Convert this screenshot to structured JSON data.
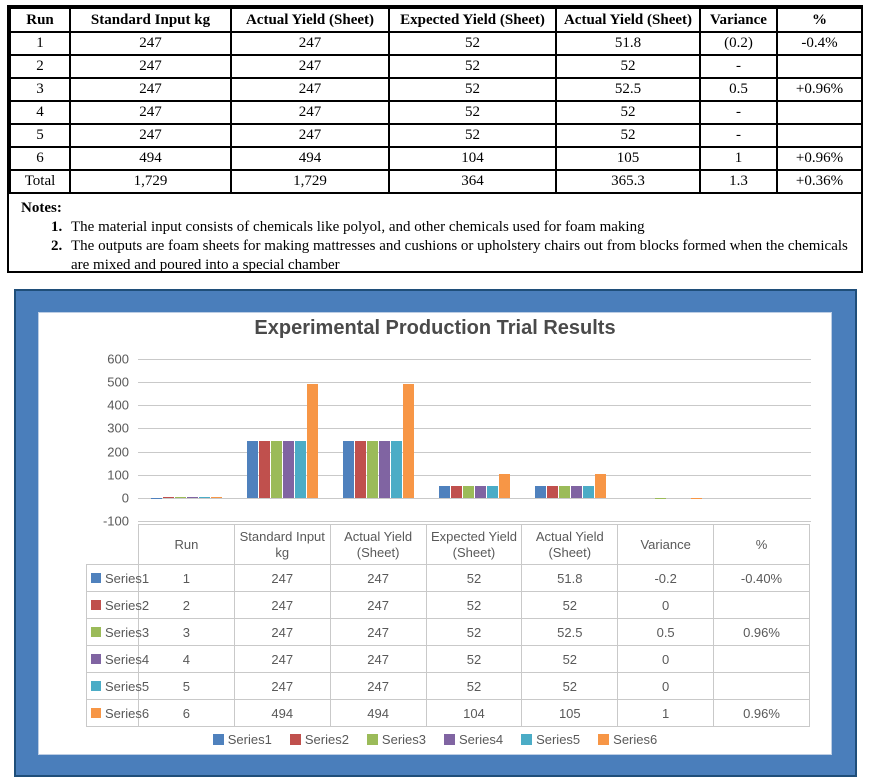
{
  "document": {
    "table": {
      "headers": [
        "Run",
        "Standard Input kg",
        "Actual Yield (Sheet)",
        "Expected Yield (Sheet)",
        "Actual Yield (Sheet)",
        "Variance",
        "%"
      ],
      "rows": [
        [
          "1",
          "247",
          "247",
          "52",
          "51.8",
          "(0.2)",
          "-0.4%"
        ],
        [
          "2",
          "247",
          "247",
          "52",
          "52",
          "-",
          ""
        ],
        [
          "3",
          "247",
          "247",
          "52",
          "52.5",
          "0.5",
          "+0.96%"
        ],
        [
          "4",
          "247",
          "247",
          "52",
          "52",
          "-",
          ""
        ],
        [
          "5",
          "247",
          "247",
          "52",
          "52",
          "-",
          ""
        ],
        [
          "6",
          "494",
          "494",
          "104",
          "105",
          "1",
          "+0.96%"
        ],
        [
          "Total",
          "1,729",
          "1,729",
          "364",
          "365.3",
          "1.3",
          "+0.36%"
        ]
      ]
    },
    "notes": {
      "label": "Notes:",
      "items": [
        {
          "num": "1.",
          "text": "The material input consists of chemicals like polyol, and other chemicals used for foam making"
        },
        {
          "num": "2.",
          "text": "The outputs are foam sheets for making mattresses and cushions or upholstery chairs out from blocks formed when the chemicals are mixed and poured into a special chamber"
        }
      ]
    }
  },
  "chart_data": {
    "type": "bar",
    "title": "Experimental Production Trial Results",
    "categories": [
      "Run",
      "Standard Input kg",
      "Actual Yield (Sheet)",
      "Expected Yield (Sheet)",
      "Actual Yield (Sheet)",
      "Variance",
      "%"
    ],
    "series": [
      {
        "name": "Series1",
        "color": "#4F81BD",
        "values": [
          1,
          247,
          247,
          52,
          51.8,
          -0.2,
          -0.004
        ]
      },
      {
        "name": "Series2",
        "color": "#C0504D",
        "values": [
          2,
          247,
          247,
          52,
          52,
          0,
          0
        ]
      },
      {
        "name": "Series3",
        "color": "#9BBB59",
        "values": [
          3,
          247,
          247,
          52,
          52.5,
          0.5,
          0.0096
        ]
      },
      {
        "name": "Series4",
        "color": "#8064A2",
        "values": [
          4,
          247,
          247,
          52,
          52,
          0,
          0
        ]
      },
      {
        "name": "Series5",
        "color": "#4BACC6",
        "values": [
          5,
          247,
          247,
          52,
          52,
          0,
          0
        ]
      },
      {
        "name": "Series6",
        "color": "#F79646",
        "values": [
          6,
          494,
          494,
          104,
          105,
          1,
          0.0096
        ]
      }
    ],
    "ylim": [
      -100,
      600
    ],
    "yticks": [
      600,
      500,
      400,
      300,
      200,
      100,
      0,
      -100
    ],
    "grid": true,
    "legend_position": "bottom",
    "data_table": {
      "col_headers": [
        "Run",
        "Standard Input kg",
        "Actual Yield (Sheet)",
        "Expected Yield (Sheet)",
        "Actual Yield (Sheet)",
        "Variance",
        "%"
      ],
      "rows": [
        {
          "series": "Series1",
          "cells": [
            "1",
            "247",
            "247",
            "52",
            "51.8",
            "-0.2",
            "-0.40%"
          ]
        },
        {
          "series": "Series2",
          "cells": [
            "2",
            "247",
            "247",
            "52",
            "52",
            "0",
            ""
          ]
        },
        {
          "series": "Series3",
          "cells": [
            "3",
            "247",
            "247",
            "52",
            "52.5",
            "0.5",
            "0.96%"
          ]
        },
        {
          "series": "Series4",
          "cells": [
            "4",
            "247",
            "247",
            "52",
            "52",
            "0",
            ""
          ]
        },
        {
          "series": "Series5",
          "cells": [
            "5",
            "247",
            "247",
            "52",
            "52",
            "0",
            ""
          ]
        },
        {
          "series": "Series6",
          "cells": [
            "6",
            "494",
            "494",
            "104",
            "105",
            "1",
            "0.96%"
          ]
        }
      ]
    },
    "colors": {
      "frame": "#4a7ebb",
      "frame_border": "#1F4E79",
      "grid": "#c9c9c9",
      "text": "#595959",
      "title": "#4a4a4a"
    }
  }
}
